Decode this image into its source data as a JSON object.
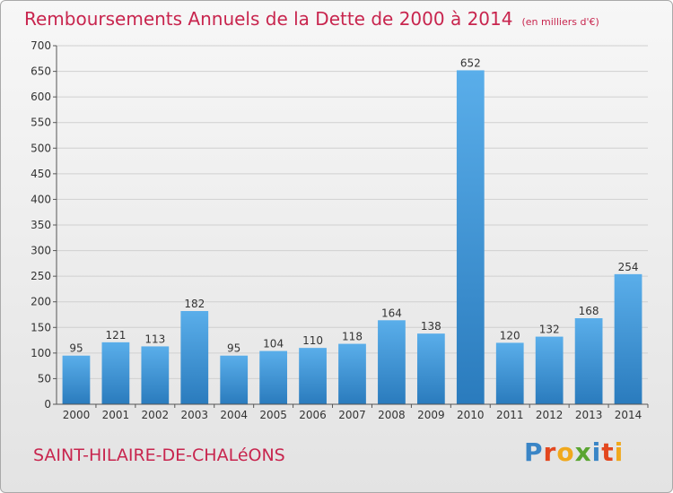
{
  "header": {
    "title": "Remboursements Annuels de la Dette de 2000 à 2014",
    "unit": "(en milliers d'€)"
  },
  "footer": {
    "commune": "SAINT-HILAIRE-DE-CHALéONS",
    "logo_letters": [
      "P",
      "r",
      "o",
      "x",
      "i",
      "t",
      "i"
    ],
    "logo_colors": [
      "#3a85c6",
      "#e3471e",
      "#f0a81c",
      "#5aa531",
      "#3a85c6",
      "#e3471e",
      "#f0a81c"
    ]
  },
  "colors": {
    "bar_light": "#5aaeea",
    "bar_dark": "#2a7bbd",
    "accent": "#c8254e",
    "grid": "#d0d0d0"
  },
  "chart_data": {
    "type": "bar",
    "categories": [
      "2000",
      "2001",
      "2002",
      "2003",
      "2004",
      "2005",
      "2006",
      "2007",
      "2008",
      "2009",
      "2010",
      "2011",
      "2012",
      "2013",
      "2014"
    ],
    "values": [
      95,
      121,
      113,
      182,
      95,
      104,
      110,
      118,
      164,
      138,
      652,
      120,
      132,
      168,
      254
    ],
    "ylim": [
      0,
      700
    ],
    "yticks": [
      0,
      50,
      100,
      150,
      200,
      250,
      300,
      350,
      400,
      450,
      500,
      550,
      600,
      650,
      700
    ],
    "grid": true,
    "legend": "none"
  }
}
